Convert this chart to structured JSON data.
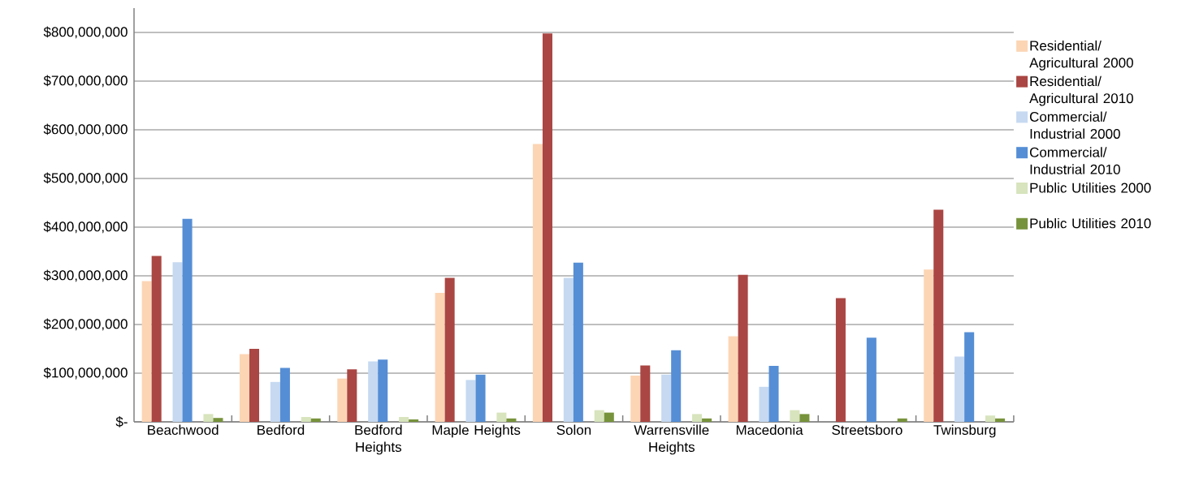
{
  "chart_data": {
    "type": "bar",
    "categories": [
      "Beachwood",
      "Bedford",
      "Bedford Heights",
      "Maple Heights",
      "Solon",
      "Warrensville Heights",
      "Macedonia",
      "Streetsboro",
      "Twinsburg"
    ],
    "series": [
      {
        "name": "Residential/ Agricultural 2000",
        "color": "#fcd5b5",
        "values": [
          289000000,
          139000000,
          89000000,
          265000000,
          571000000,
          95000000,
          176000000,
          null,
          313000000
        ]
      },
      {
        "name": "Residential/ Agricultural 2010",
        "color": "#aa4643",
        "values": [
          341000000,
          150000000,
          108000000,
          296000000,
          798000000,
          116000000,
          302000000,
          254000000,
          436000000
        ]
      },
      {
        "name": "Commercial/ Industrial 2000",
        "color": "#c6d9f1",
        "values": [
          328000000,
          82000000,
          124000000,
          86000000,
          296000000,
          97000000,
          72000000,
          null,
          134000000
        ]
      },
      {
        "name": "Commercial/ Industrial 2010",
        "color": "#558ed5",
        "values": [
          417000000,
          111000000,
          128000000,
          97000000,
          327000000,
          147000000,
          115000000,
          173000000,
          184000000
        ]
      },
      {
        "name": "Public Utilities 2000",
        "color": "#d7e4bd",
        "values": [
          16000000,
          10000000,
          10000000,
          19000000,
          24000000,
          16000000,
          24000000,
          null,
          13000000
        ]
      },
      {
        "name": "Public Utilities 2010",
        "color": "#77933c",
        "values": [
          8000000,
          7000000,
          5000000,
          7000000,
          19000000,
          7000000,
          16000000,
          7000000,
          7000000
        ]
      }
    ],
    "ylim": [
      0,
      850000000
    ],
    "yticks": [
      {
        "value": 0,
        "label": "$-"
      },
      {
        "value": 100000000,
        "label": "$100,000,000"
      },
      {
        "value": 200000000,
        "label": "$200,000,000"
      },
      {
        "value": 300000000,
        "label": "$300,000,000"
      },
      {
        "value": 400000000,
        "label": "$400,000,000"
      },
      {
        "value": 500000000,
        "label": "$500,000,000"
      },
      {
        "value": 600000000,
        "label": "$600,000,000"
      },
      {
        "value": 700000000,
        "label": "$700,000,000"
      },
      {
        "value": 800000000,
        "label": "$800,000,000"
      }
    ],
    "grid": "y",
    "legend": "right"
  }
}
